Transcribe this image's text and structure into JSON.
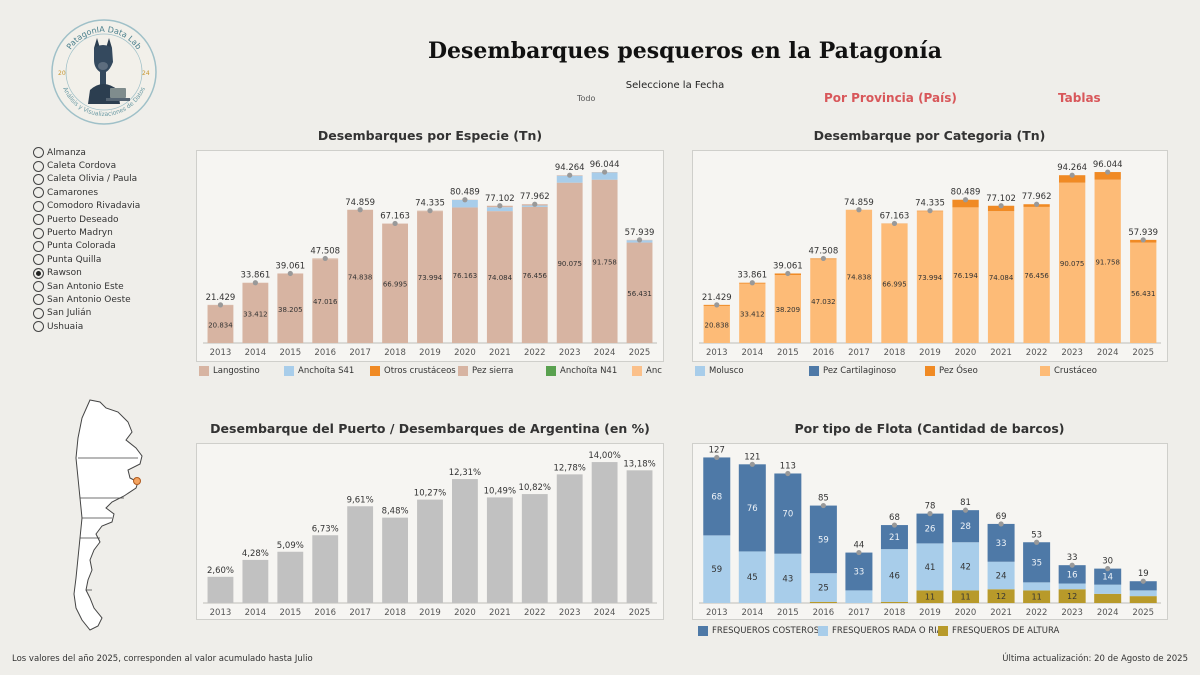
{
  "header": {
    "logo_top_text": "PatagonIA Data Lab",
    "logo_bottom_text": "Análisis y Visualizaciones de Datos",
    "logo_year_left": "20",
    "logo_year_right": "24",
    "title": "Desembarques pesqueros en la Patagonía",
    "date_filter_label": "Seleccione la Fecha",
    "date_filter_value": "Todo",
    "nav_provincia": "Por Provincia (País)",
    "nav_tablas": "Tablas"
  },
  "colors": {
    "langostino": "#d7b4a2",
    "anchoita_s41": "#a8cdea",
    "otros_crustaceos": "#f08a24",
    "pez_sierra": "#d7b4a2",
    "anchoita_n41": "#59a14f",
    "anchoa": "#fbc08a",
    "molusco": "#a8cdea",
    "pez_cartilaginoso": "#4e79a7",
    "pez_oseo": "#f08a24",
    "crustaceo": "#fdbb77",
    "pct_bar": "#c1c1c1",
    "flota_costeros": "#4e79a7",
    "flota_rada": "#a8cdea",
    "flota_altura": "#b89a2a",
    "nav": "#d8575a"
  },
  "ports": {
    "items": [
      "Almanza",
      "Caleta Cordova",
      "Caleta Olivia / Paula",
      "Camarones",
      "Comodoro Rivadavia",
      "Puerto Deseado",
      "Puerto Madryn",
      "Punta Colorada",
      "Punta Quilla",
      "Rawson",
      "San Antonio Este",
      "San Antonio Oeste",
      "San Julián",
      "Ushuaia"
    ],
    "selected": "Rawson"
  },
  "chart_data": [
    {
      "id": "especie",
      "type": "bar",
      "title": "Desembarques por Especie (Tn)",
      "categories": [
        "2013",
        "2014",
        "2015",
        "2016",
        "2017",
        "2018",
        "2019",
        "2020",
        "2021",
        "2022",
        "2023",
        "2024",
        "2025"
      ],
      "totals": [
        21429,
        33861,
        39061,
        47508,
        74859,
        67163,
        74335,
        80489,
        77102,
        77962,
        94264,
        96044,
        57939
      ],
      "total_labels": [
        "21.429",
        "33.861",
        "39.061",
        "47.508",
        "74.859",
        "67.163",
        "74.335",
        "80.489",
        "77.102",
        "77.962",
        "94.264",
        "96.044",
        "57.939"
      ],
      "series": [
        {
          "name": "Langostino",
          "values": [
            20834,
            33412,
            38205,
            47016,
            74838,
            66995,
            73994,
            76163,
            74084,
            76456,
            90075,
            91758,
            56431
          ],
          "labels": [
            "20.834",
            "33.412",
            "38.205",
            "47.016",
            "74.838",
            "66.995",
            "73.994",
            "76.163",
            "74.084",
            "76.456",
            "90.075",
            "91.758",
            "56.431"
          ]
        },
        {
          "name": "Anchoíta S41",
          "values": [
            0,
            0,
            0,
            0,
            0,
            0,
            0,
            4200,
            2200,
            800,
            3900,
            4100,
            1300
          ]
        },
        {
          "name": "Otros crustáceos",
          "values": [
            0,
            0,
            0,
            0,
            0,
            0,
            0,
            0,
            0,
            0,
            0,
            0,
            0
          ]
        },
        {
          "name": "Pez sierra",
          "values": [
            595,
            449,
            856,
            492,
            21,
            168,
            341,
            126,
            818,
            706,
            289,
            186,
            208
          ]
        }
      ],
      "legend": [
        "Langostino",
        "Anchoíta S41",
        "Otros crustáceos",
        "Pez sierra",
        "Anchoíta N41",
        "Anch"
      ],
      "ylim": [
        0,
        100000
      ]
    },
    {
      "id": "categoria",
      "type": "bar",
      "title": "Desembarque por Categoria (Tn)",
      "categories": [
        "2013",
        "2014",
        "2015",
        "2016",
        "2017",
        "2018",
        "2019",
        "2020",
        "2021",
        "2022",
        "2023",
        "2024",
        "2025"
      ],
      "totals": [
        21429,
        33861,
        39061,
        47508,
        74859,
        67163,
        74335,
        80489,
        77102,
        77962,
        94264,
        96044,
        57939
      ],
      "total_labels": [
        "21.429",
        "33.861",
        "39.061",
        "47.508",
        "74.859",
        "67.163",
        "74.335",
        "80.489",
        "77.102",
        "77.962",
        "94.264",
        "96.044",
        "57.939"
      ],
      "series": [
        {
          "name": "Crustáceo",
          "values": [
            20838,
            33412,
            38209,
            47032,
            74838,
            66995,
            73994,
            76194,
            74084,
            76456,
            90075,
            91758,
            56431
          ],
          "labels": [
            "20.838",
            "33.412",
            "38.209",
            "47.032",
            "74.838",
            "66.995",
            "73.994",
            "76.194",
            "74.084",
            "76.456",
            "90.075",
            "91.758",
            "56.431"
          ]
        },
        {
          "name": "Pez Óseo",
          "values": [
            591,
            449,
            852,
            476,
            21,
            168,
            341,
            4295,
            3018,
            1506,
            4189,
            4286,
            1508
          ]
        }
      ],
      "legend": [
        "Molusco",
        "Pez Cartilaginoso",
        "Pez Óseo",
        "Crustáceo"
      ],
      "ylim": [
        0,
        100000
      ]
    },
    {
      "id": "porcentaje",
      "type": "bar",
      "title": "Desembarque del Puerto / Desembarques de Argentina (en %)",
      "categories": [
        "2013",
        "2014",
        "2015",
        "2016",
        "2017",
        "2018",
        "2019",
        "2020",
        "2021",
        "2022",
        "2023",
        "2024",
        "2025"
      ],
      "values": [
        2.6,
        4.28,
        5.09,
        6.73,
        9.61,
        8.48,
        10.27,
        12.31,
        10.49,
        10.82,
        12.78,
        14.0,
        13.18
      ],
      "labels": [
        "2,60%",
        "4,28%",
        "5,09%",
        "6,73%",
        "9,61%",
        "8,48%",
        "10,27%",
        "12,31%",
        "10,49%",
        "10,82%",
        "12,78%",
        "14,00%",
        "13,18%"
      ],
      "ylim": [
        0,
        15
      ]
    },
    {
      "id": "flota",
      "type": "bar",
      "title": "Por tipo de Flota (Cantidad de barcos)",
      "categories": [
        "2013",
        "2014",
        "2015",
        "2016",
        "2017",
        "2018",
        "2019",
        "2020",
        "2021",
        "2022",
        "2023",
        "2024",
        "2025"
      ],
      "totals": [
        127,
        121,
        113,
        85,
        44,
        68,
        78,
        81,
        69,
        53,
        33,
        30,
        19
      ],
      "series": [
        {
          "name": "FRESQUEROS DE ALTURA",
          "values": [
            0,
            0,
            0,
            1,
            0,
            1,
            11,
            11,
            12,
            11,
            12,
            8,
            6
          ],
          "labels": [
            "",
            "",
            "",
            "",
            "",
            "",
            "11",
            "11",
            "12",
            "11",
            "12",
            "",
            ""
          ]
        },
        {
          "name": "FRESQUEROS RADA O RIA",
          "values": [
            59,
            45,
            43,
            25,
            11,
            46,
            41,
            42,
            24,
            7,
            5,
            8,
            5
          ],
          "labels": [
            "59",
            "45",
            "43",
            "25",
            "",
            "46",
            "41",
            "42",
            "24",
            "",
            "",
            "",
            ""
          ]
        },
        {
          "name": "FRESQUEROS COSTEROS",
          "values": [
            68,
            76,
            70,
            59,
            33,
            21,
            26,
            28,
            33,
            35,
            16,
            14,
            8
          ],
          "labels": [
            "68",
            "76",
            "70",
            "59",
            "33",
            "21",
            "26",
            "28",
            "33",
            "35",
            "16",
            "14",
            ""
          ]
        }
      ],
      "legend": [
        "FRESQUEROS COSTEROS",
        "FRESQUEROS RADA O RIA",
        "FRESQUEROS DE ALTURA"
      ],
      "ylim": [
        0,
        130
      ]
    }
  ],
  "footer": {
    "note": "Los valores del año 2025, corresponden al valor acumulado hasta Julio",
    "updated": "Última actualización: 20 de Agosto de 2025"
  }
}
